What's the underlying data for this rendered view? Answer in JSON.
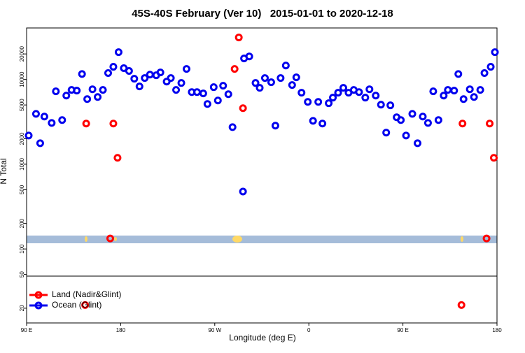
{
  "chart_data": {
    "type": "scatter",
    "title": "45S-40S February (Ver 10)   2015-01-01 to 2020-12-18",
    "x_label": "Longitude (deg E)",
    "y_label": "N Total",
    "log_y": true,
    "legend": "bottomleft",
    "xlim": [
      90,
      540
    ],
    "ylim": [
      13.4,
      40500
    ],
    "xticks": [
      {
        "value": 90,
        "label": "90 E"
      },
      {
        "value": 180,
        "label": "180"
      },
      {
        "value": 270,
        "label": "90 W"
      },
      {
        "value": 360,
        "label": "0"
      },
      {
        "value": 450,
        "label": "90 E"
      },
      {
        "value": 540,
        "label": "180"
      }
    ],
    "yticks": [
      20,
      50,
      100,
      200,
      500,
      1000,
      2000,
      5000,
      10000,
      20000
    ],
    "series": [
      {
        "name": "Land (Nadir&Glint)",
        "color": "#ff0000",
        "x": [
          147,
          170,
          173,
          177,
          289,
          293,
          297,
          146,
          506,
          507,
          530,
          533,
          537
        ],
        "values": [
          3020,
          133,
          3020,
          1190,
          13300,
          31300,
          4580,
          21.8,
          21.8,
          3020,
          133,
          3020,
          1190
        ]
      },
      {
        "name": "Ocean (Glint)",
        "color": "#0000ee",
        "x": [
          92,
          99,
          103,
          107,
          114,
          118,
          124,
          128,
          133,
          138,
          143,
          148,
          153,
          158,
          163,
          168,
          173,
          178,
          183,
          188,
          193,
          198,
          203,
          208,
          214,
          218,
          224,
          228,
          233,
          238,
          243,
          248,
          253,
          259,
          263,
          269,
          273,
          278,
          283,
          287,
          297,
          298,
          303,
          309,
          313,
          318,
          324,
          328,
          333,
          338,
          344,
          348,
          353,
          359,
          364,
          369,
          373,
          379,
          383,
          388,
          393,
          398,
          403,
          408,
          414,
          418,
          424,
          429,
          434,
          438,
          444,
          448,
          453,
          459,
          464,
          469,
          474,
          479,
          484,
          489,
          493,
          499,
          503,
          508,
          514,
          518,
          524,
          528,
          534,
          538
        ],
        "values": [
          2180,
          3930,
          1770,
          3650,
          3070,
          7240,
          3320,
          6450,
          7520,
          7380,
          11600,
          5870,
          7660,
          6210,
          7520,
          11900,
          14100,
          21000,
          13600,
          12600,
          10200,
          8270,
          10400,
          11400,
          11200,
          12100,
          9440,
          10400,
          7520,
          9090,
          13300,
          7100,
          7100,
          6840,
          5140,
          8110,
          5650,
          8430,
          6700,
          2740,
          476,
          17700,
          18700,
          9090,
          7960,
          10400,
          9270,
          2850,
          10400,
          14600,
          8590,
          10600,
          6970,
          5440,
          3250,
          5440,
          3020,
          5240,
          6100,
          6970,
          7960,
          6970,
          7520,
          7100,
          6100,
          7660,
          6450,
          5040,
          2360,
          4950,
          3580,
          3320,
          2180,
          3930,
          1770,
          3650,
          3070,
          7240,
          3320,
          6450,
          7520,
          7380,
          11600,
          5870,
          7660,
          6210,
          7520,
          11900,
          14100,
          21000
        ]
      }
    ]
  }
}
